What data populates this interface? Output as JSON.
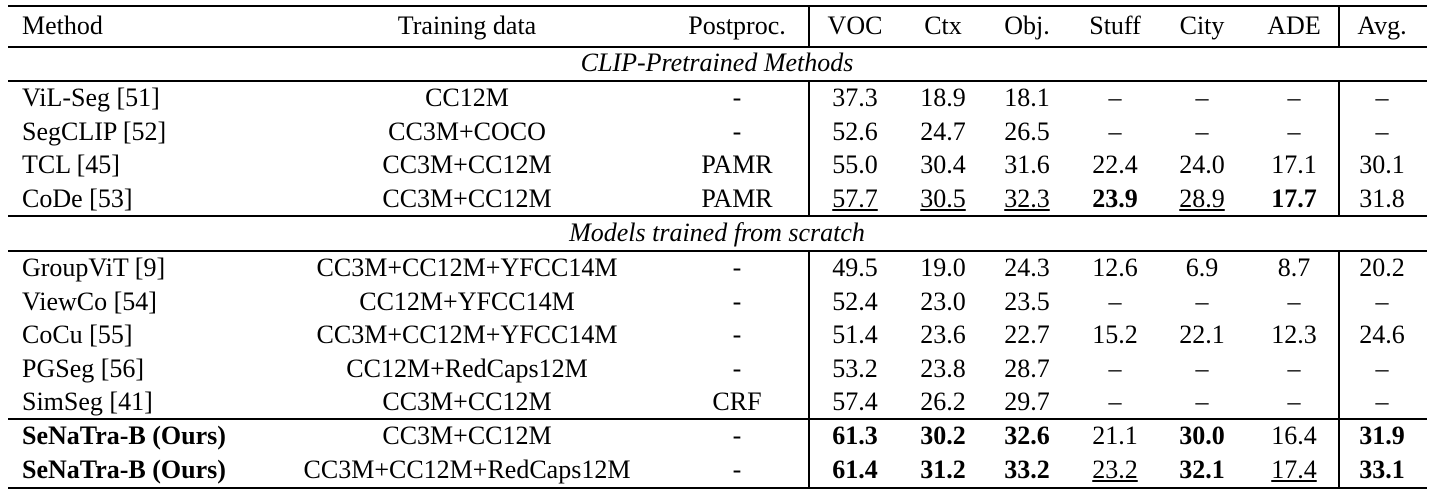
{
  "table": {
    "header": [
      "Method",
      "Training data",
      "Postproc.",
      "VOC",
      "Ctx",
      "Obj.",
      "Stuff",
      "City",
      "ADE",
      "Avg."
    ],
    "sections": [
      {
        "title": "CLIP-Pretrained Methods",
        "rows": [
          {
            "cells": [
              "ViL-Seg [51]",
              "CC12M",
              "-",
              "37.3",
              "18.9",
              "18.1",
              "–",
              "–",
              "–",
              "–"
            ],
            "bold": [],
            "underline": []
          },
          {
            "cells": [
              "SegCLIP [52]",
              "CC3M+COCO",
              "-",
              "52.6",
              "24.7",
              "26.5",
              "–",
              "–",
              "–",
              "–"
            ],
            "bold": [],
            "underline": []
          },
          {
            "cells": [
              "TCL [45]",
              "CC3M+CC12M",
              "PAMR",
              "55.0",
              "30.4",
              "31.6",
              "22.4",
              "24.0",
              "17.1",
              "30.1"
            ],
            "bold": [],
            "underline": []
          },
          {
            "cells": [
              "CoDe [53]",
              "CC3M+CC12M",
              "PAMR",
              "57.7",
              "30.5",
              "32.3",
              "23.9",
              "28.9",
              "17.7",
              "31.8"
            ],
            "bold": [
              6,
              8
            ],
            "underline": [
              3,
              4,
              5,
              7
            ]
          }
        ]
      },
      {
        "title": "Models trained from scratch",
        "rows": [
          {
            "cells": [
              "GroupViT [9]",
              "CC3M+CC12M+YFCC14M",
              "-",
              "49.5",
              "19.0",
              "24.3",
              "12.6",
              "6.9",
              "8.7",
              "20.2"
            ],
            "bold": [],
            "underline": []
          },
          {
            "cells": [
              "ViewCo [54]",
              "CC12M+YFCC14M",
              "-",
              "52.4",
              "23.0",
              "23.5",
              "–",
              "–",
              "–",
              "–"
            ],
            "bold": [],
            "underline": []
          },
          {
            "cells": [
              "CoCu [55]",
              "CC3M+CC12M+YFCC14M",
              "-",
              "51.4",
              "23.6",
              "22.7",
              "15.2",
              "22.1",
              "12.3",
              "24.6"
            ],
            "bold": [],
            "underline": []
          },
          {
            "cells": [
              "PGSeg [56]",
              "CC12M+RedCaps12M",
              "-",
              "53.2",
              "23.8",
              "28.7",
              "–",
              "–",
              "–",
              "–"
            ],
            "bold": [],
            "underline": []
          },
          {
            "cells": [
              "SimSeg [41]",
              "CC3M+CC12M",
              "CRF",
              "57.4",
              "26.2",
              "29.7",
              "–",
              "–",
              "–",
              "–"
            ],
            "bold": [],
            "underline": []
          },
          {
            "cells": [
              "SeNaTra-B (Ours)",
              "CC3M+CC12M",
              "-",
              "61.3",
              "30.2",
              "32.6",
              "21.1",
              "30.0",
              "16.4",
              "31.9"
            ],
            "bold": [
              0,
              3,
              4,
              5,
              7,
              9
            ],
            "underline": []
          },
          {
            "cells": [
              "SeNaTra-B (Ours)",
              "CC3M+CC12M+RedCaps12M",
              "-",
              "61.4",
              "31.2",
              "33.2",
              "23.2",
              "32.1",
              "17.4",
              "33.1"
            ],
            "bold": [
              0,
              3,
              4,
              5,
              7,
              9
            ],
            "underline": [
              6,
              8
            ]
          }
        ]
      }
    ]
  }
}
